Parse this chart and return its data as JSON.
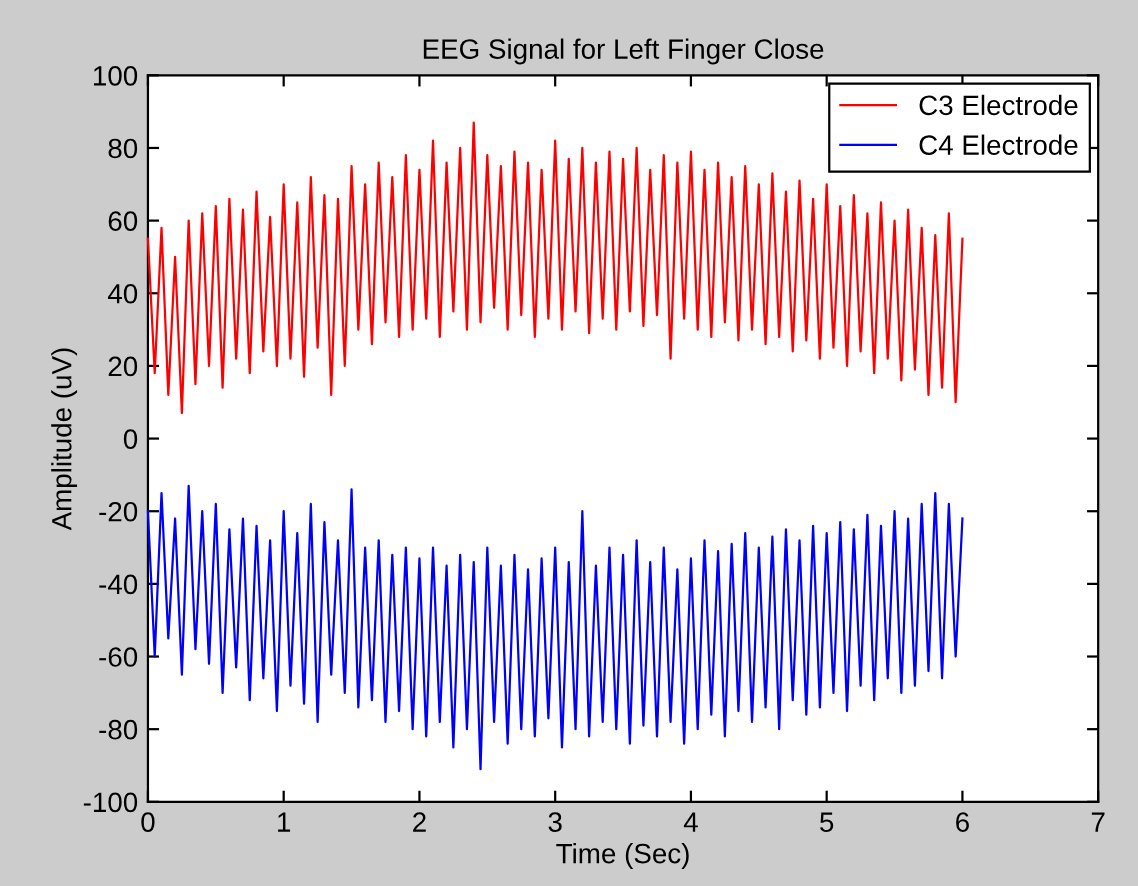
{
  "chart_data": {
    "type": "line",
    "title": "EEG Signal for Left Finger Close",
    "xlabel": "Time (Sec)",
    "ylabel": "Amplitude (uV)",
    "x": [
      0.0,
      0.05,
      0.1,
      0.15,
      0.2,
      0.25,
      0.3,
      0.35,
      0.4,
      0.45,
      0.5,
      0.55,
      0.6,
      0.65,
      0.7,
      0.75,
      0.8,
      0.85,
      0.9,
      0.95,
      1.0,
      1.05,
      1.1,
      1.15,
      1.2,
      1.25,
      1.3,
      1.35,
      1.4,
      1.45,
      1.5,
      1.55,
      1.6,
      1.65,
      1.7,
      1.75,
      1.8,
      1.85,
      1.9,
      1.95,
      2.0,
      2.05,
      2.1,
      2.15,
      2.2,
      2.25,
      2.3,
      2.35,
      2.4,
      2.45,
      2.5,
      2.55,
      2.6,
      2.65,
      2.7,
      2.75,
      2.8,
      2.85,
      2.9,
      2.95,
      3.0,
      3.05,
      3.1,
      3.15,
      3.2,
      3.25,
      3.3,
      3.35,
      3.4,
      3.45,
      3.5,
      3.55,
      3.6,
      3.65,
      3.7,
      3.75,
      3.8,
      3.85,
      3.9,
      3.95,
      4.0,
      4.05,
      4.1,
      4.15,
      4.2,
      4.25,
      4.3,
      4.35,
      4.4,
      4.45,
      4.5,
      4.55,
      4.6,
      4.65,
      4.7,
      4.75,
      4.8,
      4.85,
      4.9,
      4.95,
      5.0,
      5.05,
      5.1,
      5.15,
      5.2,
      5.25,
      5.3,
      5.35,
      5.4,
      5.45,
      5.5,
      5.55,
      5.6,
      5.65,
      5.7,
      5.75,
      5.8,
      5.85,
      5.9,
      5.95,
      6.0
    ],
    "series": [
      {
        "name": "C3 Electrode",
        "color": "#ff0000",
        "values": [
          55,
          18,
          58,
          12,
          50,
          7,
          60,
          15,
          62,
          20,
          64,
          14,
          66,
          22,
          63,
          18,
          68,
          24,
          61,
          20,
          70,
          22,
          65,
          17,
          72,
          25,
          67,
          12,
          66,
          20,
          75,
          30,
          70,
          26,
          76,
          32,
          72,
          28,
          78,
          30,
          74,
          33,
          82,
          28,
          76,
          35,
          80,
          30,
          87,
          32,
          78,
          36,
          75,
          30,
          79,
          34,
          76,
          28,
          74,
          33,
          82,
          30,
          77,
          35,
          80,
          29,
          76,
          33,
          79,
          30,
          77,
          35,
          80,
          31,
          74,
          34,
          78,
          22,
          76,
          33,
          79,
          30,
          74,
          28,
          76,
          32,
          72,
          27,
          75,
          30,
          70,
          26,
          73,
          28,
          68,
          24,
          71,
          27,
          66,
          22,
          70,
          25,
          64,
          20,
          67,
          24,
          62,
          18,
          65,
          22,
          60,
          16,
          63,
          19,
          58,
          12,
          56,
          14,
          62,
          10,
          55
        ]
      },
      {
        "name": "C4 Electrode",
        "color": "#0000ff",
        "values": [
          -20,
          -60,
          -15,
          -55,
          -22,
          -65,
          -13,
          -58,
          -20,
          -62,
          -18,
          -70,
          -25,
          -63,
          -22,
          -72,
          -24,
          -66,
          -28,
          -75,
          -20,
          -68,
          -26,
          -73,
          -18,
          -78,
          -23,
          -65,
          -28,
          -70,
          -14,
          -74,
          -30,
          -72,
          -28,
          -78,
          -32,
          -75,
          -30,
          -80,
          -33,
          -82,
          -30,
          -78,
          -35,
          -85,
          -32,
          -80,
          -34,
          -91,
          -30,
          -78,
          -35,
          -84,
          -32,
          -80,
          -36,
          -82,
          -33,
          -77,
          -30,
          -85,
          -34,
          -80,
          -20,
          -82,
          -35,
          -78,
          -30,
          -80,
          -32,
          -84,
          -28,
          -79,
          -34,
          -82,
          -30,
          -78,
          -36,
          -84,
          -33,
          -80,
          -28,
          -76,
          -31,
          -82,
          -29,
          -75,
          -26,
          -78,
          -30,
          -74,
          -27,
          -80,
          -25,
          -72,
          -28,
          -76,
          -24,
          -74,
          -26,
          -70,
          -23,
          -75,
          -25,
          -68,
          -21,
          -72,
          -24,
          -66,
          -20,
          -70,
          -22,
          -68,
          -18,
          -64,
          -15,
          -66,
          -18,
          -60,
          -22
        ]
      }
    ],
    "xlim": [
      0,
      7
    ],
    "xticks": [
      0,
      1,
      2,
      3,
      4,
      5,
      6,
      7
    ],
    "ylim": [
      -100,
      100
    ],
    "yticks": [
      -100,
      -80,
      -60,
      -40,
      -20,
      0,
      20,
      40,
      60,
      80,
      100
    ],
    "legend": "top right",
    "grid": false,
    "marker": "none",
    "line_style": "solid"
  }
}
